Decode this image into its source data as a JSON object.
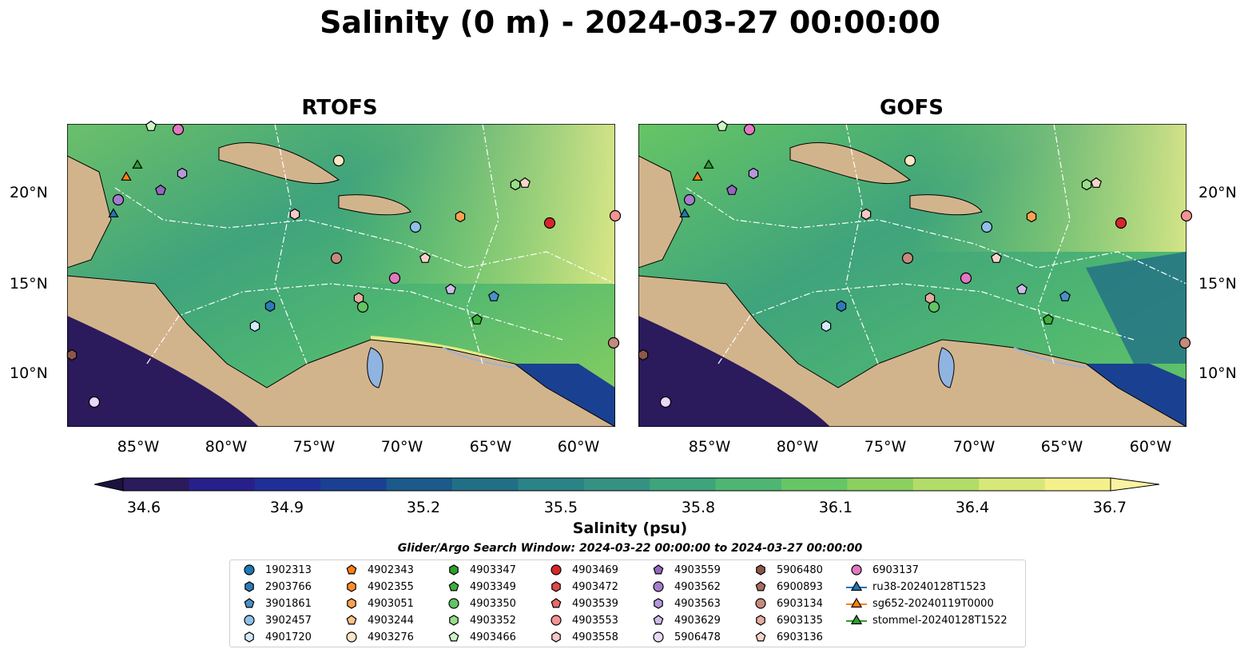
{
  "title": "Salinity (0 m) - 2024-03-27 00:00:00",
  "maps": [
    {
      "title": "RTOFS"
    },
    {
      "title": "GOFS"
    }
  ],
  "lat_labels": [
    "20°N",
    "15°N",
    "10°N"
  ],
  "lon_labels": [
    "85°W",
    "80°W",
    "75°W",
    "70°W",
    "65°W",
    "60°W"
  ],
  "colorbar": {
    "label": "Salinity (psu)",
    "ticks": [
      "34.6",
      "34.9",
      "35.2",
      "35.5",
      "35.8",
      "36.1",
      "36.4",
      "36.7"
    ],
    "min": 34.6,
    "max": 36.7,
    "colors": [
      "#2b1a5c",
      "#27208a",
      "#1f2f98",
      "#1a4191",
      "#1b5a8a",
      "#216f86",
      "#2a8386",
      "#359283",
      "#3fa37c",
      "#4eb672",
      "#66c565",
      "#8bd15f",
      "#b2dd68",
      "#d8e878",
      "#f5ef8c"
    ]
  },
  "search_window": "Glider/Argo Search Window: 2024-03-22 00:00:00 to 2024-03-27 00:00:00",
  "legend": [
    {
      "label": "1902313",
      "marker": "circle",
      "color": "#1f77b4"
    },
    {
      "label": "2903766",
      "marker": "hexagon",
      "color": "#2b7bba"
    },
    {
      "label": "3901861",
      "marker": "pentagon",
      "color": "#4a90c9"
    },
    {
      "label": "3902457",
      "marker": "circle",
      "color": "#8fc1e8"
    },
    {
      "label": "4901720",
      "marker": "hexagon",
      "color": "#d3e9f8"
    },
    {
      "label": "4902343",
      "marker": "pentagon",
      "color": "#ff7f0e"
    },
    {
      "label": "4902355",
      "marker": "hexagon",
      "color": "#ff8c2a"
    },
    {
      "label": "4903051",
      "marker": "hexagon",
      "color": "#ffa24f"
    },
    {
      "label": "4903244",
      "marker": "pentagon",
      "color": "#ffc28a"
    },
    {
      "label": "4903276",
      "marker": "circle",
      "color": "#ffe6c4"
    },
    {
      "label": "4903347",
      "marker": "hexagon",
      "color": "#2ca02c"
    },
    {
      "label": "4903349",
      "marker": "pentagon",
      "color": "#3fae3f"
    },
    {
      "label": "4903350",
      "marker": "circle",
      "color": "#62c462"
    },
    {
      "label": "4903352",
      "marker": "hexagon",
      "color": "#98df8a"
    },
    {
      "label": "4903466",
      "marker": "pentagon",
      "color": "#cdf5c6"
    },
    {
      "label": "4903469",
      "marker": "circle",
      "color": "#d62728"
    },
    {
      "label": "4903472",
      "marker": "hexagon",
      "color": "#df4a4a"
    },
    {
      "label": "4903539",
      "marker": "pentagon",
      "color": "#e86a6a"
    },
    {
      "label": "4903553",
      "marker": "circle",
      "color": "#f39393"
    },
    {
      "label": "4903558",
      "marker": "hexagon",
      "color": "#fbc6c6"
    },
    {
      "label": "4903559",
      "marker": "pentagon",
      "color": "#9467bd"
    },
    {
      "label": "4903562",
      "marker": "circle",
      "color": "#a47ccb"
    },
    {
      "label": "4903563",
      "marker": "hexagon",
      "color": "#b896da"
    },
    {
      "label": "4903629",
      "marker": "pentagon",
      "color": "#d2b9ec"
    },
    {
      "label": "5906478",
      "marker": "circle",
      "color": "#e8d7f8"
    },
    {
      "label": "5906480",
      "marker": "hexagon",
      "color": "#8c564b"
    },
    {
      "label": "6900893",
      "marker": "pentagon",
      "color": "#a86d60"
    },
    {
      "label": "6903134",
      "marker": "circle",
      "color": "#c48a7c"
    },
    {
      "label": "6903135",
      "marker": "hexagon",
      "color": "#e3ad9f"
    },
    {
      "label": "6903136",
      "marker": "pentagon",
      "color": "#f7d4c8"
    },
    {
      "label": "6903137",
      "marker": "circle",
      "color": "#e377c2"
    },
    {
      "label": "ru38-20240128T1523",
      "marker": "triangle-line",
      "color": "#1f77b4"
    },
    {
      "label": "sg652-20240119T0000",
      "marker": "triangle-line",
      "color": "#ff7f0e"
    },
    {
      "label": "stommel-20240128T1522",
      "marker": "triangle-line",
      "color": "#2ca02c"
    }
  ]
}
